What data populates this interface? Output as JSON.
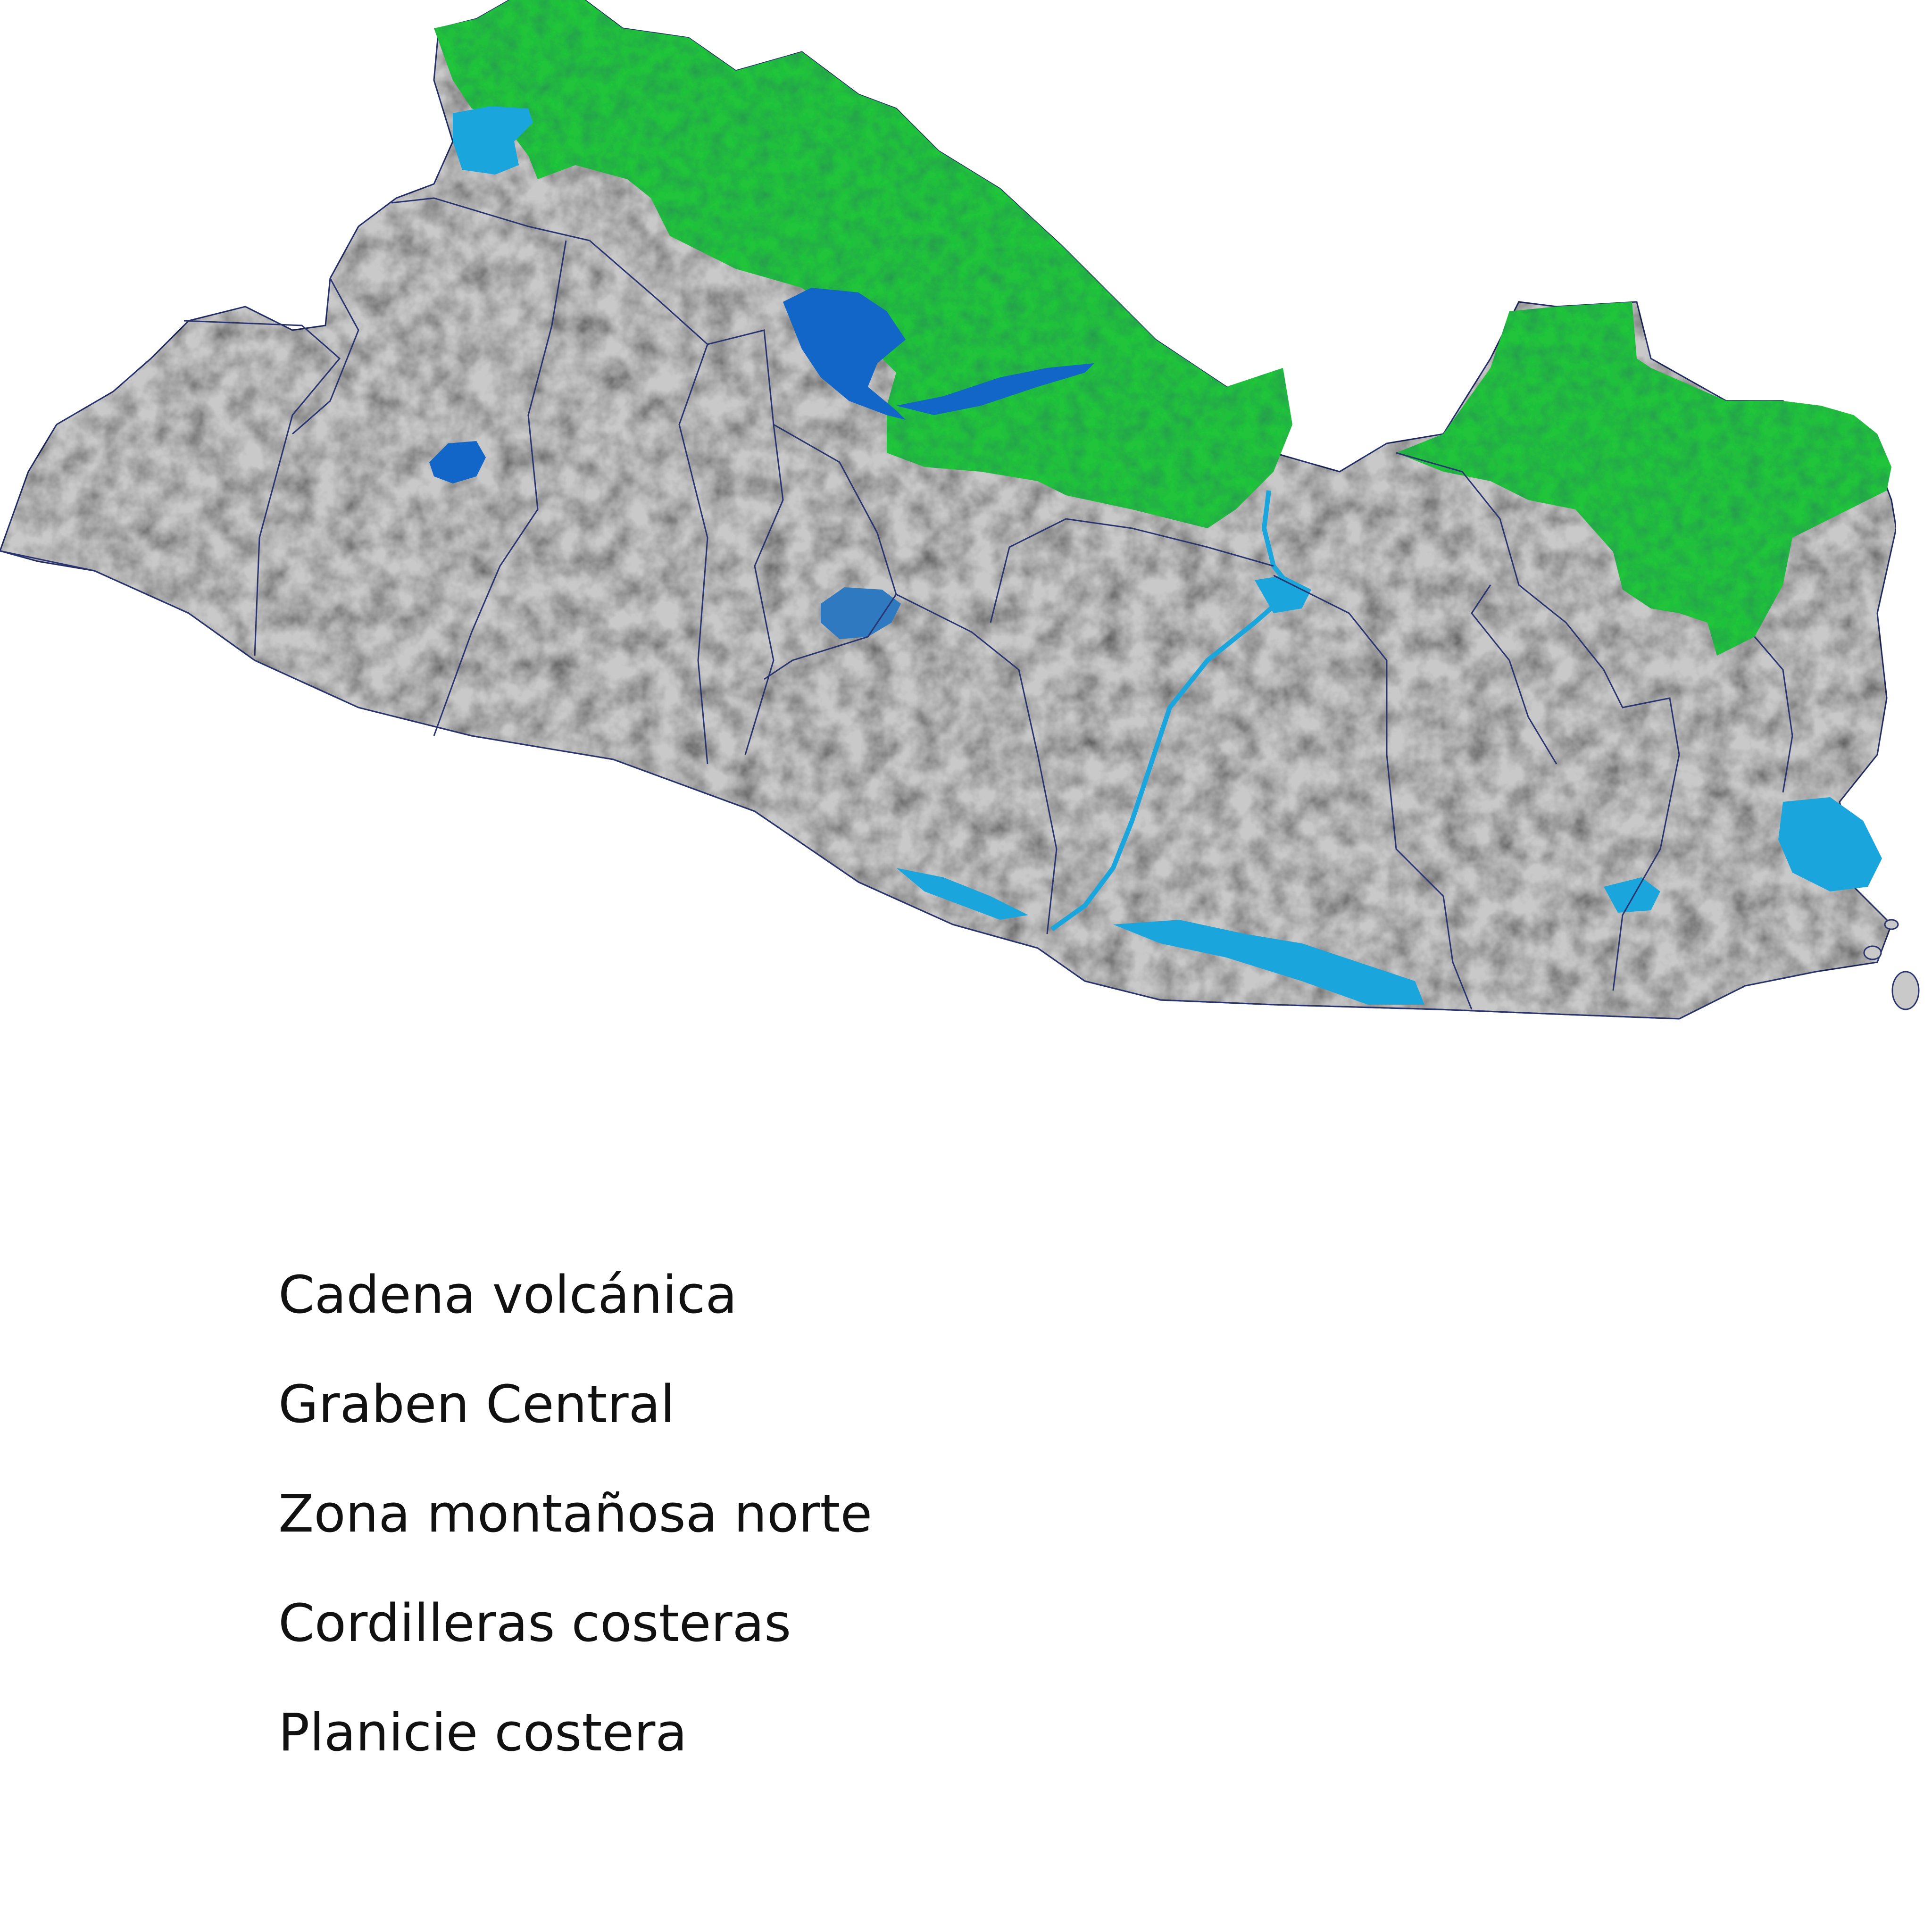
{
  "map": {
    "colors": {
      "land": "#c9c9c9",
      "land_shade": "#9a9a9a",
      "highlight_region": "#22c43a",
      "highlight_shade": "#128a26",
      "water_dark": "#1166c8",
      "water_light": "#1aa6dc",
      "boundary": "#2a3570"
    },
    "highlighted_region": "Zona montañosa norte"
  },
  "legend": {
    "items": [
      "Cadena volcánica",
      "Graben Central",
      "Zona montañosa norte",
      "Cordilleras costeras",
      "Planicie costera"
    ]
  }
}
